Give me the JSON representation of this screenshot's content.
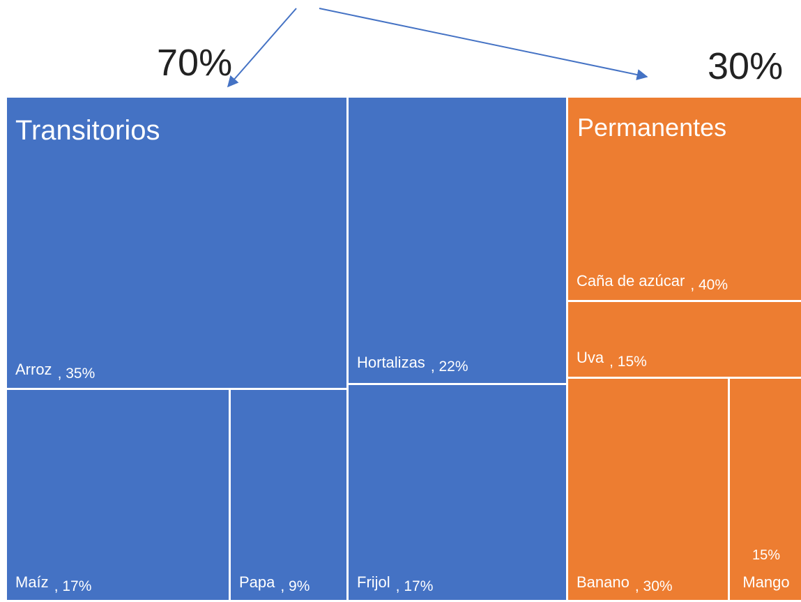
{
  "chart_data": {
    "type": "treemap",
    "groups": [
      {
        "name": "Transitorios",
        "value": 70,
        "value_label": "70%",
        "color": "#4472c4",
        "children": [
          {
            "name": "Arroz",
            "value": 35,
            "value_label": ", 35%"
          },
          {
            "name": "Maíz",
            "value": 17,
            "value_label": ", 17%"
          },
          {
            "name": "Papa",
            "value": 9,
            "value_label": ", 9%"
          },
          {
            "name": "Hortalizas",
            "value": 22,
            "value_label": ", 22%"
          },
          {
            "name": "Frijol",
            "value": 17,
            "value_label": ", 17%"
          }
        ]
      },
      {
        "name": "Permanentes",
        "value": 30,
        "value_label": "30%",
        "color": "#ed7d31",
        "children": [
          {
            "name": "Caña de azúcar",
            "value": 40,
            "value_label": ", 40%"
          },
          {
            "name": "Uva",
            "value": 15,
            "value_label": ", 15%"
          },
          {
            "name": "Banano",
            "value": 30,
            "value_label": ", 30%"
          },
          {
            "name": "Mango",
            "value": 15,
            "value_label": "15%"
          }
        ]
      }
    ]
  }
}
